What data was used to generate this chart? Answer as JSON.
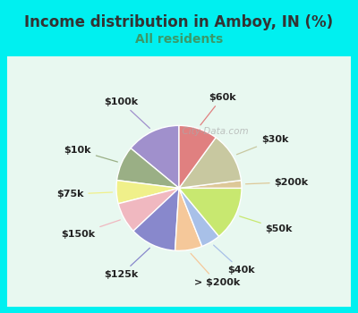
{
  "title": "Income distribution in Amboy, IN (%)",
  "subtitle": "All residents",
  "labels": [
    "$100k",
    "$10k",
    "$75k",
    "$150k",
    "$125k",
    "> $200k",
    "$40k",
    "$50k",
    "$200k",
    "$30k",
    "$60k"
  ],
  "values": [
    14,
    9,
    6,
    8,
    12,
    7,
    5,
    14,
    2,
    13,
    10
  ],
  "colors": [
    "#a090cc",
    "#9aaf85",
    "#f0f08a",
    "#f0b8c0",
    "#8888cc",
    "#f5c89a",
    "#a8c0e8",
    "#c8e870",
    "#ddc898",
    "#c8c8a0",
    "#e08080"
  ],
  "bg_color": "#00f0f0",
  "chart_bg_left": "#d8f0e0",
  "chart_bg_right": "#f0f8ff",
  "title_color": "#333333",
  "subtitle_color": "#3a9a6a",
  "watermark": "City-Data.com",
  "startangle": 90,
  "label_fontsize": 8,
  "title_fontsize": 12,
  "subtitle_fontsize": 10
}
